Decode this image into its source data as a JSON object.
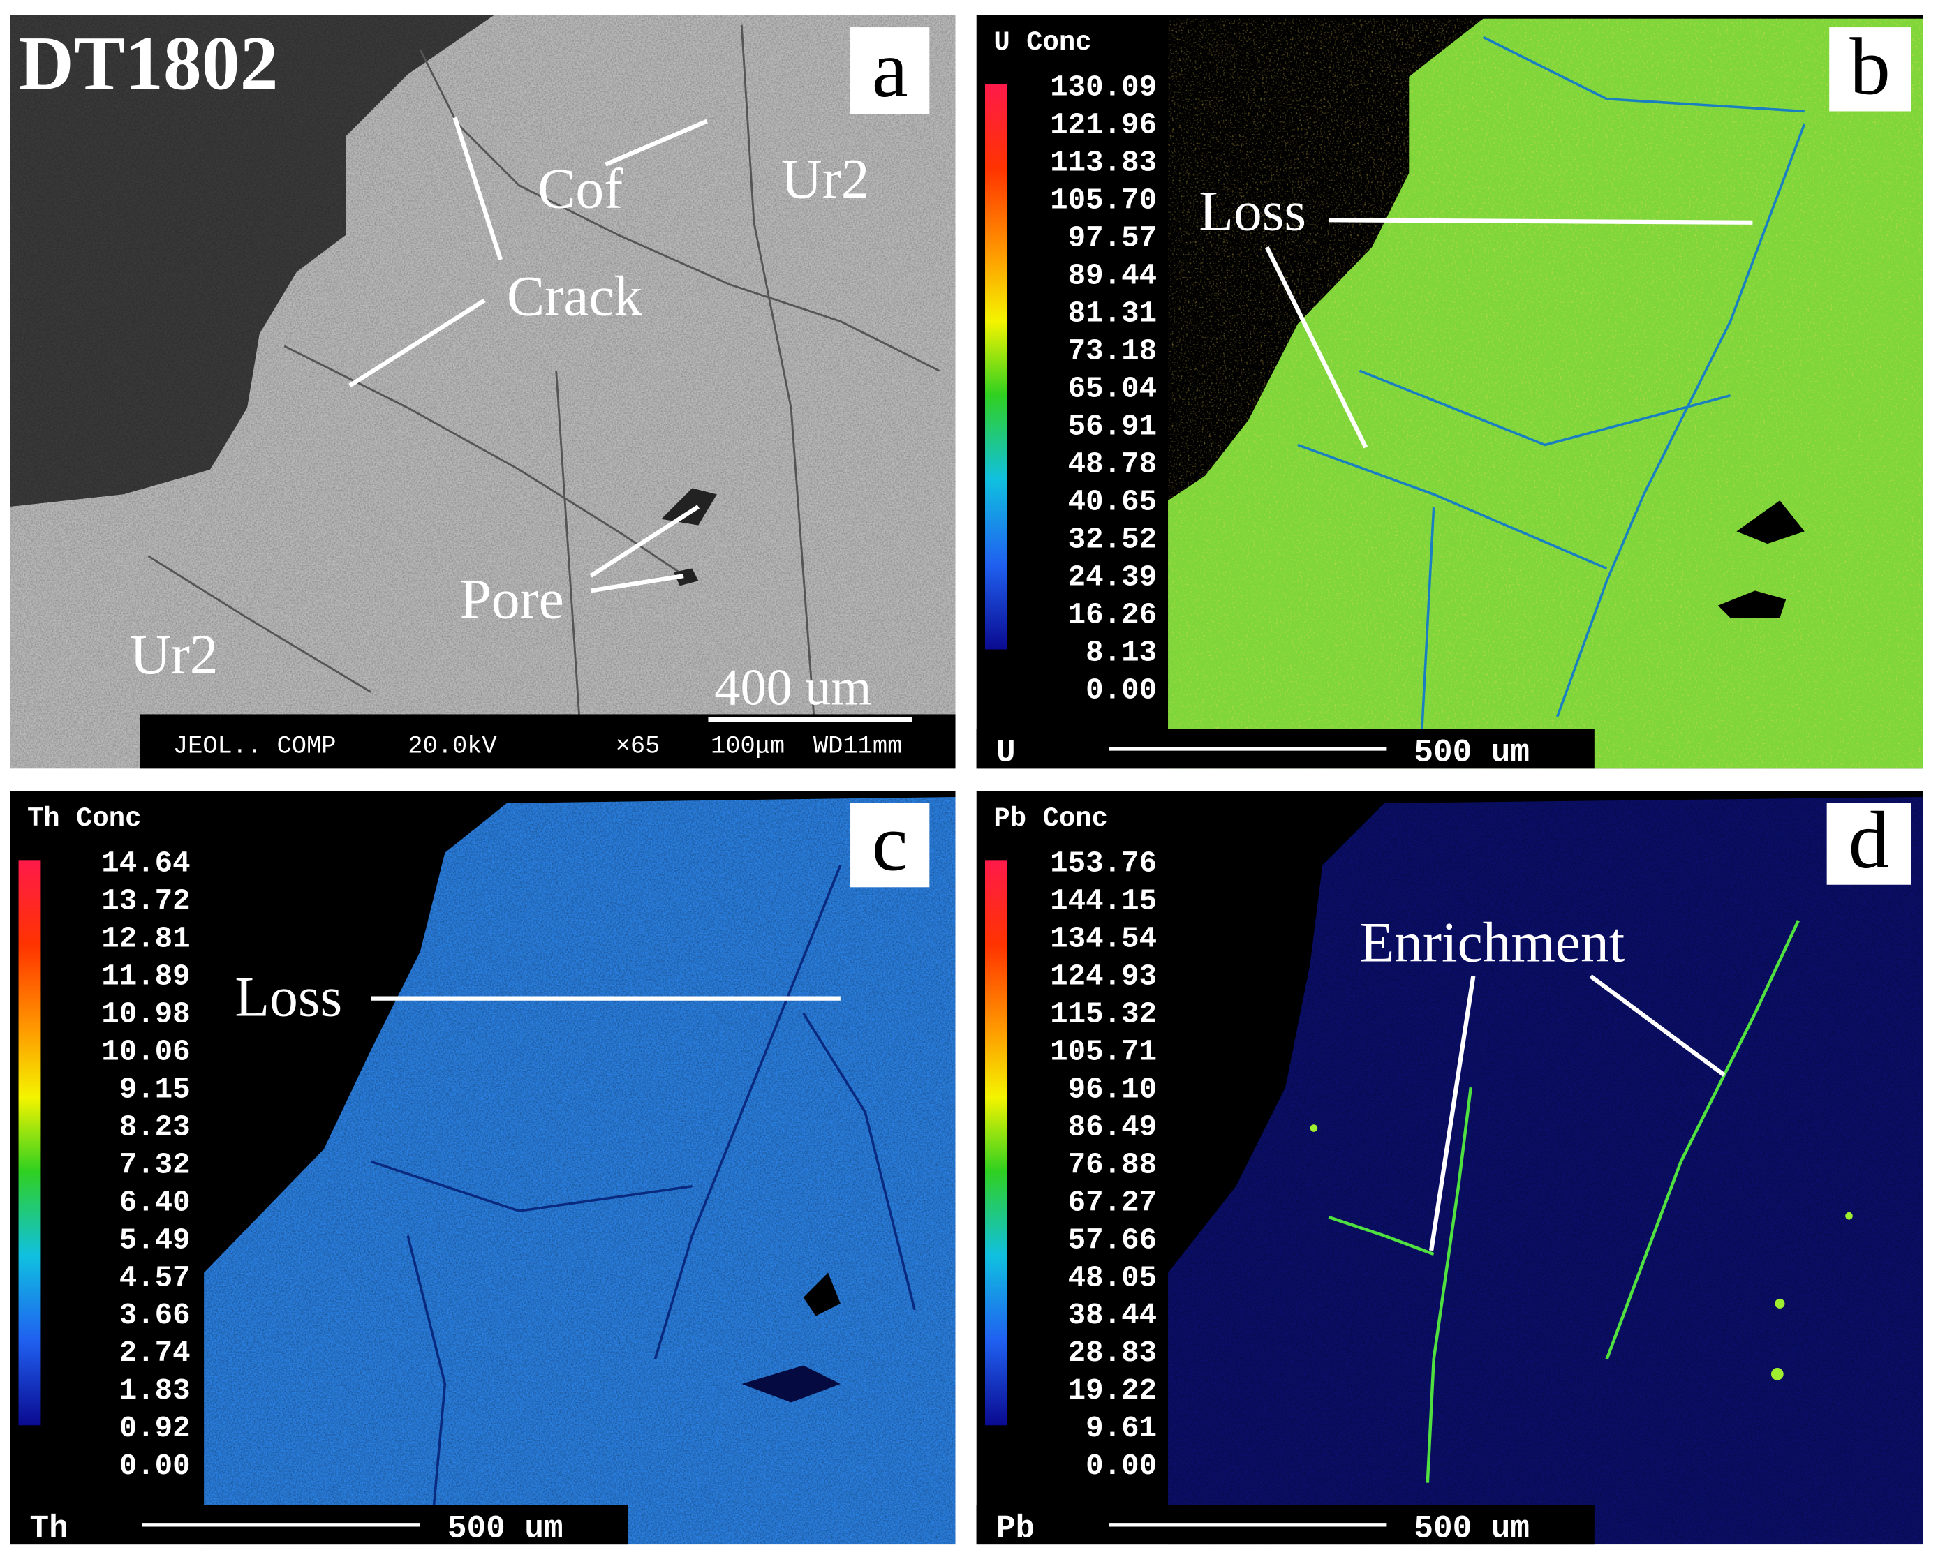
{
  "panels": [
    {
      "letter": "a",
      "sample": "DT1802",
      "annotations": [
        "Cof",
        "Ur2",
        "Crack",
        "Pore",
        "Ur2"
      ],
      "scale_bar": "400 um",
      "footer": [
        "JEOL.. COMP",
        "20.0kV",
        "×65",
        "100μm",
        "WD11mm"
      ]
    },
    {
      "letter": "b",
      "scale_title": "U Conc",
      "scale_values": [
        "130.09",
        "121.96",
        "113.83",
        "105.70",
        "97.57",
        "89.44",
        "81.31",
        "73.18",
        "65.04",
        "56.91",
        "48.78",
        "40.65",
        "32.52",
        "24.39",
        "16.26",
        "8.13",
        "0.00"
      ],
      "annotations": [
        "Loss"
      ],
      "element": "U",
      "scale_bar": "500 um"
    },
    {
      "letter": "c",
      "scale_title": "Th Conc",
      "scale_values": [
        "14.64",
        "13.72",
        "12.81",
        "11.89",
        "10.98",
        "10.06",
        "9.15",
        "8.23",
        "7.32",
        "6.40",
        "5.49",
        "4.57",
        "3.66",
        "2.74",
        "1.83",
        "0.92",
        "0.00"
      ],
      "annotations": [
        "Loss"
      ],
      "element": "Th",
      "scale_bar": "500 um"
    },
    {
      "letter": "d",
      "scale_title": "Pb Conc",
      "scale_values": [
        "153.76",
        "144.15",
        "134.54",
        "124.93",
        "115.32",
        "105.71",
        "96.10",
        "86.49",
        "76.88",
        "67.27",
        "57.66",
        "48.05",
        "38.44",
        "28.83",
        "19.22",
        "9.61",
        "0.00"
      ],
      "annotations": [
        "Enrichment"
      ],
      "element": "Pb",
      "scale_bar": "500 um"
    }
  ]
}
